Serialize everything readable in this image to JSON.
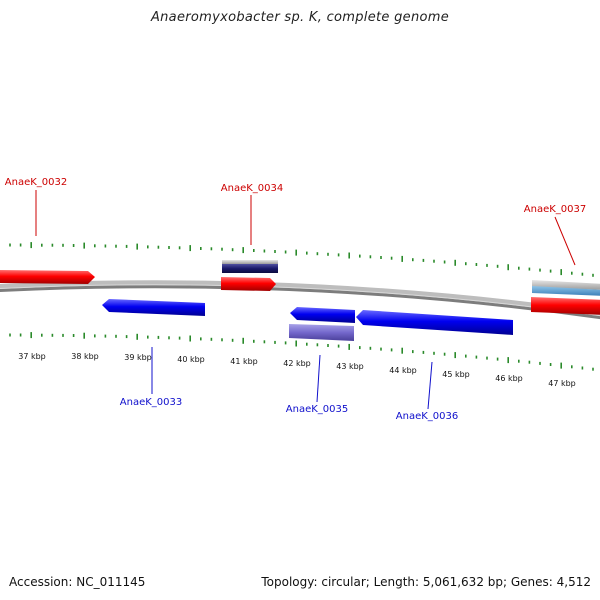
{
  "title": "Anaeromyxobacter sp. K, complete genome",
  "footer": {
    "accession": "Accession: NC_011145",
    "summary": "Topology: circular; Length: 5,061,632 bp; Genes: 4,512"
  },
  "colors": {
    "forward_gene": "#ff0000",
    "reverse_gene": "#0000ff",
    "forward_label": "#cc0000",
    "reverse_label": "#1010cc",
    "tick": "#2a8a2a",
    "backbone": "#8a8a8a"
  },
  "scale_labels": [
    "37 kbp",
    "38 kbp",
    "39 kbp",
    "40 kbp",
    "41 kbp",
    "42 kbp",
    "43 kbp",
    "44 kbp",
    "45 kbp",
    "46 kbp",
    "47 kbp"
  ],
  "gene_labels": {
    "forward": [
      "AnaeK_0032",
      "AnaeK_0034",
      "AnaeK_0037"
    ],
    "reverse": [
      "AnaeK_0033",
      "AnaeK_0035",
      "AnaeK_0036"
    ]
  }
}
